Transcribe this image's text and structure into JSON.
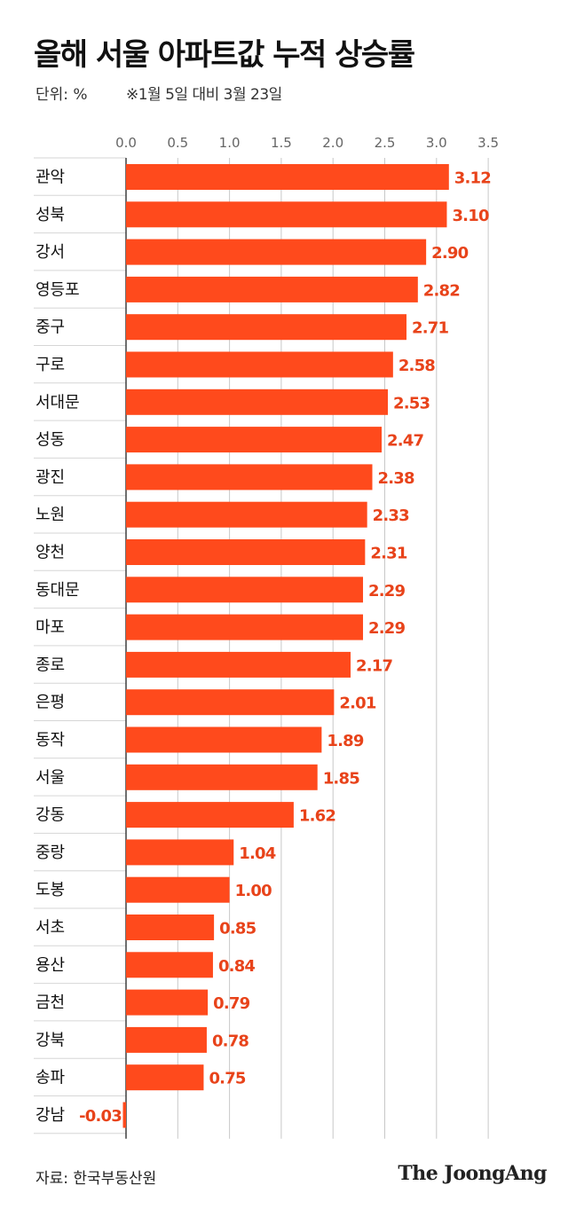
{
  "header": {
    "title": "올해 서울 아파트값 누적 상승률",
    "unit": "단위: %",
    "note": "※1월 5일 대비 3월 23일"
  },
  "footer": {
    "source": "자료: 한국부동산원",
    "logo": "The JoongAng"
  },
  "colors": {
    "bar": "#ff4a1c",
    "value_label": "#e8431a",
    "grid": "#c8c8c8"
  },
  "chart_data": {
    "type": "bar",
    "orientation": "horizontal",
    "title": "올해 서울 아파트값 누적 상승률",
    "xlim": [
      0,
      3.5
    ],
    "ticks": [
      "0.0",
      "0.5",
      "1.0",
      "1.5",
      "2.0",
      "2.5",
      "3.0",
      "3.5"
    ],
    "tick_values": [
      0,
      0.5,
      1.0,
      1.5,
      2.0,
      2.5,
      3.0,
      3.5
    ],
    "grid": true,
    "categories": [
      "관악",
      "성북",
      "강서",
      "영등포",
      "중구",
      "구로",
      "서대문",
      "성동",
      "광진",
      "노원",
      "양천",
      "동대문",
      "마포",
      "종로",
      "은평",
      "동작",
      "서울",
      "강동",
      "중랑",
      "도봉",
      "서초",
      "용산",
      "금천",
      "강북",
      "송파",
      "강남"
    ],
    "values": [
      3.12,
      3.1,
      2.9,
      2.82,
      2.71,
      2.58,
      2.53,
      2.47,
      2.38,
      2.33,
      2.31,
      2.29,
      2.29,
      2.17,
      2.01,
      1.89,
      1.85,
      1.62,
      1.04,
      1.0,
      0.85,
      0.84,
      0.79,
      0.78,
      0.75,
      -0.03
    ],
    "value_labels": [
      "3.12",
      "3.10",
      "2.90",
      "2.82",
      "2.71",
      "2.58",
      "2.53",
      "2.47",
      "2.38",
      "2.33",
      "2.31",
      "2.29",
      "2.29",
      "2.17",
      "2.01",
      "1.89",
      "1.85",
      "1.62",
      "1.04",
      "1.00",
      "0.85",
      "0.84",
      "0.79",
      "0.78",
      "0.75",
      "-0.03"
    ]
  }
}
